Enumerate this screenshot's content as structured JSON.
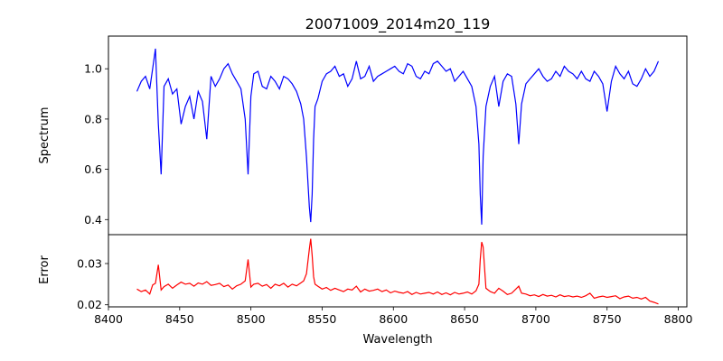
{
  "chart_data": {
    "type": "line",
    "title": "20071009_2014m20_119",
    "xlabel": "Wavelength",
    "xlim": [
      8400,
      8806
    ],
    "xticks": [
      "8400",
      "8450",
      "8500",
      "8550",
      "8600",
      "8650",
      "8700",
      "8750",
      "8800"
    ],
    "panels": [
      {
        "name": "spectrum",
        "ylabel": "Spectrum",
        "ylim": [
          0.34,
          1.13
        ],
        "yticks": [
          "0.4",
          "0.6",
          "0.8",
          "1.0"
        ],
        "color": "#0000ff",
        "series": [
          {
            "x": [
              8420,
              8423,
              8426,
              8429,
              8431,
              8433,
              8435,
              8437,
              8439,
              8442,
              8445,
              8448,
              8451,
              8454,
              8457,
              8460,
              8463,
              8466,
              8469,
              8472,
              8475,
              8478,
              8481,
              8484,
              8487,
              8490,
              8493,
              8496,
              8498,
              8500,
              8502,
              8505,
              8508,
              8511,
              8514,
              8517,
              8520,
              8523,
              8526,
              8529,
              8532,
              8535,
              8537,
              8539,
              8541,
              8542,
              8543,
              8544,
              8545,
              8547,
              8550,
              8553,
              8556,
              8559,
              8562,
              8565,
              8568,
              8571,
              8574,
              8577,
              8580,
              8583,
              8586,
              8589,
              8592,
              8595,
              8598,
              8601,
              8604,
              8607,
              8610,
              8613,
              8616,
              8619,
              8622,
              8625,
              8628,
              8631,
              8634,
              8637,
              8640,
              8643,
              8646,
              8649,
              8652,
              8655,
              8658,
              8660,
              8661,
              8662,
              8663,
              8665,
              8668,
              8671,
              8674,
              8677,
              8680,
              8683,
              8686,
              8688,
              8690,
              8693,
              8696,
              8699,
              8702,
              8705,
              8708,
              8711,
              8714,
              8717,
              8720,
              8723,
              8726,
              8729,
              8732,
              8735,
              8738,
              8741,
              8744,
              8747,
              8750,
              8753,
              8756,
              8759,
              8762,
              8765,
              8768,
              8771,
              8774,
              8777,
              8780,
              8783,
              8786
            ],
            "y": [
              0.91,
              0.95,
              0.97,
              0.92,
              1.0,
              1.08,
              0.78,
              0.58,
              0.93,
              0.96,
              0.9,
              0.92,
              0.78,
              0.85,
              0.89,
              0.8,
              0.91,
              0.87,
              0.72,
              0.97,
              0.93,
              0.96,
              1.0,
              1.02,
              0.98,
              0.95,
              0.92,
              0.8,
              0.58,
              0.89,
              0.98,
              0.99,
              0.93,
              0.92,
              0.97,
              0.95,
              0.92,
              0.97,
              0.96,
              0.94,
              0.91,
              0.86,
              0.8,
              0.65,
              0.45,
              0.39,
              0.5,
              0.72,
              0.85,
              0.88,
              0.95,
              0.98,
              0.99,
              1.01,
              0.97,
              0.98,
              0.93,
              0.96,
              1.03,
              0.96,
              0.97,
              1.01,
              0.95,
              0.97,
              0.98,
              0.99,
              1.0,
              1.01,
              0.99,
              0.98,
              1.02,
              1.01,
              0.97,
              0.96,
              0.99,
              0.98,
              1.02,
              1.03,
              1.01,
              0.99,
              1.0,
              0.95,
              0.97,
              0.99,
              0.96,
              0.93,
              0.85,
              0.7,
              0.5,
              0.38,
              0.65,
              0.85,
              0.93,
              0.97,
              0.85,
              0.95,
              0.98,
              0.97,
              0.86,
              0.7,
              0.86,
              0.94,
              0.96,
              0.98,
              1.0,
              0.97,
              0.95,
              0.96,
              0.99,
              0.97,
              1.01,
              0.99,
              0.98,
              0.96,
              0.99,
              0.96,
              0.95,
              0.99,
              0.97,
              0.94,
              0.83,
              0.95,
              1.01,
              0.98,
              0.96,
              0.99,
              0.94,
              0.93,
              0.96,
              1.0,
              0.97,
              0.99,
              1.03
            ]
          }
        ]
      },
      {
        "name": "error",
        "ylabel": "Error",
        "ylim": [
          0.0195,
          0.037
        ],
        "yticks": [
          "0.02",
          "0.03"
        ],
        "color": "#ff0000",
        "series": [
          {
            "x": [
              8420,
              8423,
              8426,
              8429,
              8431,
              8433,
              8435,
              8437,
              8439,
              8442,
              8445,
              8448,
              8451,
              8454,
              8457,
              8460,
              8463,
              8466,
              8469,
              8472,
              8475,
              8478,
              8481,
              8484,
              8487,
              8490,
              8493,
              8496,
              8498,
              8500,
              8502,
              8505,
              8508,
              8511,
              8514,
              8517,
              8520,
              8523,
              8526,
              8529,
              8532,
              8535,
              8537,
              8539,
              8541,
              8542,
              8543,
              8544,
              8545,
              8547,
              8550,
              8553,
              8556,
              8559,
              8562,
              8565,
              8568,
              8571,
              8574,
              8577,
              8580,
              8583,
              8586,
              8589,
              8592,
              8595,
              8598,
              8601,
              8604,
              8607,
              8610,
              8613,
              8616,
              8619,
              8622,
              8625,
              8628,
              8631,
              8634,
              8637,
              8640,
              8643,
              8646,
              8649,
              8652,
              8655,
              8658,
              8660,
              8661,
              8662,
              8663,
              8665,
              8668,
              8671,
              8674,
              8677,
              8680,
              8683,
              8686,
              8688,
              8690,
              8693,
              8696,
              8699,
              8702,
              8705,
              8708,
              8711,
              8714,
              8717,
              8720,
              8723,
              8726,
              8729,
              8732,
              8735,
              8738,
              8741,
              8744,
              8747,
              8750,
              8753,
              8756,
              8759,
              8762,
              8765,
              8768,
              8771,
              8774,
              8777,
              8780,
              8783,
              8786
            ],
            "y": [
              0.0238,
              0.0232,
              0.0236,
              0.0226,
              0.0248,
              0.0252,
              0.0297,
              0.0236,
              0.0244,
              0.025,
              0.024,
              0.0248,
              0.0255,
              0.025,
              0.0252,
              0.0245,
              0.0253,
              0.025,
              0.0256,
              0.0247,
              0.0249,
              0.0252,
              0.0244,
              0.0248,
              0.0238,
              0.0246,
              0.025,
              0.0258,
              0.031,
              0.0243,
              0.025,
              0.0252,
              0.0245,
              0.0249,
              0.024,
              0.025,
              0.0246,
              0.0252,
              0.0243,
              0.025,
              0.0246,
              0.0253,
              0.0258,
              0.0275,
              0.0335,
              0.036,
              0.032,
              0.0268,
              0.025,
              0.0245,
              0.0238,
              0.0242,
              0.0235,
              0.024,
              0.0236,
              0.0232,
              0.0238,
              0.0236,
              0.0245,
              0.0231,
              0.0238,
              0.0233,
              0.0235,
              0.0238,
              0.0232,
              0.0236,
              0.0229,
              0.0233,
              0.023,
              0.0228,
              0.0232,
              0.0225,
              0.023,
              0.0226,
              0.0228,
              0.023,
              0.0226,
              0.0231,
              0.0225,
              0.0229,
              0.0224,
              0.023,
              0.0226,
              0.0228,
              0.0231,
              0.0226,
              0.0234,
              0.025,
              0.031,
              0.0352,
              0.034,
              0.024,
              0.0232,
              0.0228,
              0.024,
              0.0233,
              0.0225,
              0.0228,
              0.0238,
              0.0245,
              0.0228,
              0.0226,
              0.0222,
              0.0224,
              0.022,
              0.0225,
              0.0221,
              0.0223,
              0.0219,
              0.0224,
              0.022,
              0.0222,
              0.0219,
              0.0221,
              0.0218,
              0.0222,
              0.0228,
              0.0216,
              0.0219,
              0.0221,
              0.0218,
              0.022,
              0.0222,
              0.0215,
              0.0219,
              0.0221,
              0.0216,
              0.0218,
              0.0214,
              0.0218,
              0.0209,
              0.0206,
              0.0202
            ]
          }
        ]
      }
    ]
  }
}
